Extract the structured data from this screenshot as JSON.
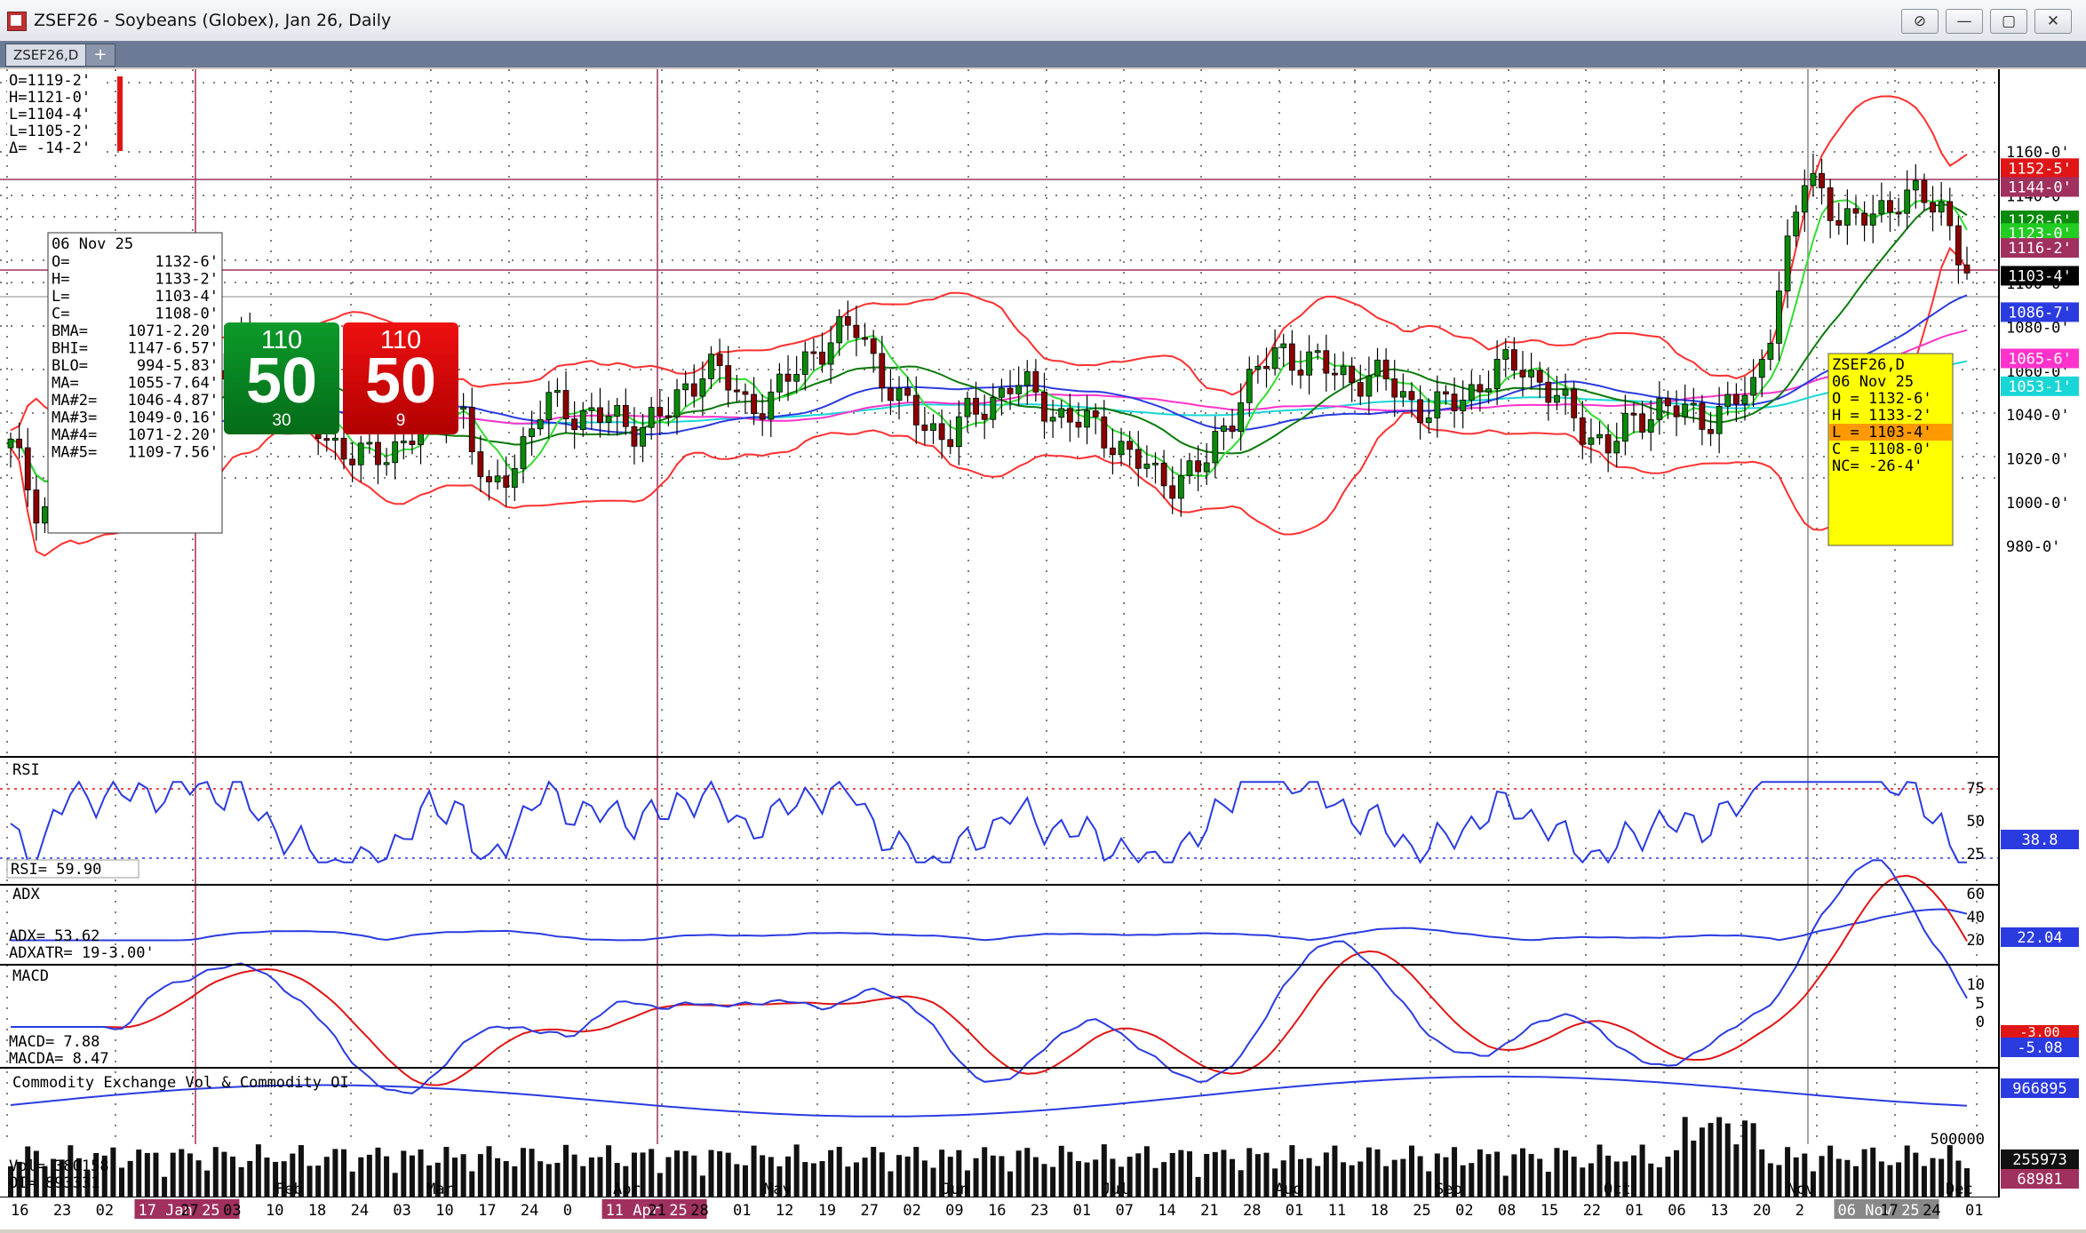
{
  "window": {
    "title": "ZSEF26 - Soybeans (Globex), Jan 26, Daily",
    "tab_label": "ZSEF26,D",
    "tab_add": "+",
    "buttons": [
      "⊘",
      "—",
      "▢",
      "✕"
    ]
  },
  "ohlc_box": [
    "O=1119-2'",
    "H=1121-0'",
    "L=1104-4'",
    "L=1105-2'",
    "Δ= -14-2'"
  ],
  "data_box": {
    "date": "06 Nov 25",
    "rows": [
      [
        "O=",
        "1132-6'"
      ],
      [
        "H=",
        "1133-2'"
      ],
      [
        "L=",
        "1103-4'"
      ],
      [
        "C=",
        "1108-0'"
      ],
      [
        "BMA=",
        "1071-2.20'"
      ],
      [
        "BHI=",
        "1147-6.57'"
      ],
      [
        "BLO=",
        "994-5.83'"
      ],
      [
        "MA=",
        "1055-7.64'"
      ],
      [
        "MA#2=",
        "1046-4.87'"
      ],
      [
        "MA#3=",
        "1049-0.16'"
      ],
      [
        "MA#4=",
        "1071-2.20'"
      ],
      [
        "MA#5=",
        "1109-7.56'"
      ]
    ]
  },
  "signals": {
    "green": {
      "top": "110",
      "big": "50",
      "bottom": "30"
    },
    "red": {
      "top": "110",
      "big": "50",
      "bottom": "9"
    }
  },
  "yellow_box": [
    "ZSEF26,D",
    "06 Nov 25",
    "O = 1132-6'",
    "H = 1133-2'",
    "L = 1103-4'",
    "C = 1108-0'",
    "NC= -26-4'"
  ],
  "price_axis": {
    "ticks": [
      "1160-0'",
      "1140-0'",
      "1100-0'",
      "1080-0'",
      "1060-0'",
      "1040-0'",
      "1020-0'",
      "1000-0'",
      "980-0'"
    ],
    "tick_values": [
      1160,
      1140,
      1100,
      1080,
      1060,
      1040,
      1020,
      1000,
      980
    ],
    "badges": [
      {
        "text": "1152-5'",
        "value": 1152.6,
        "color": "#e01515"
      },
      {
        "text": "1144-0'",
        "value": 1144,
        "color": "#a0305e"
      },
      {
        "text": "1128-6'",
        "value": 1128.8,
        "color": "#0a8a0a"
      },
      {
        "text": "1123-0'",
        "value": 1123,
        "color": "#22cc22"
      },
      {
        "text": "1116-2'",
        "value": 1116.2,
        "color": "#a0305e"
      },
      {
        "text": "1103-4'",
        "value": 1103.5,
        "color": "#000000"
      },
      {
        "text": "1086-7'",
        "value": 1086.9,
        "color": "#2a3be0"
      },
      {
        "text": "1065-6'",
        "value": 1065.8,
        "color": "#ff33cc"
      },
      {
        "text": "1053-1'",
        "value": 1053.1,
        "color": "#19d6d6"
      }
    ]
  },
  "rsi": {
    "label": "RSI",
    "readout": "RSI=   59.90",
    "ticks": [
      "75",
      "50",
      "25"
    ],
    "badge": "38.8"
  },
  "adx": {
    "label": "ADX",
    "readout1": "ADX=         53.62",
    "readout2": "ADXATR= 19-3.00'",
    "ticks": [
      "60",
      "40",
      "20"
    ],
    "badge": "22.04"
  },
  "macd": {
    "label": "MACD",
    "readout1": "MACD=    7.88",
    "readout2": "MACDA=   8.47",
    "ticks": [
      "10",
      "5",
      "0"
    ],
    "badge_red": "-3.00",
    "badge_blue": "-5.08"
  },
  "volume": {
    "label": "Commodity Exchange Vol & Commodity OI",
    "readout1": "Vol=   380158",
    "readout2": "OI=    893331",
    "tick": "500000",
    "badges": [
      "966895",
      "255973",
      "68981"
    ]
  },
  "date_axis": {
    "labels": [
      "16",
      "23",
      "02",
      "17 Jan 25",
      "27",
      "03",
      "10",
      "18",
      "24",
      "03",
      "10",
      "17",
      "24",
      "0",
      "11 Apr 25",
      "21",
      "28",
      "01",
      "12",
      "19",
      "27",
      "02",
      "09",
      "16",
      "23",
      "01",
      "07",
      "14",
      "21",
      "28",
      "01",
      "11",
      "18",
      "25",
      "02",
      "08",
      "15",
      "22",
      "01",
      "06",
      "13",
      "20",
      "2",
      "06 Nov 25",
      "17",
      "24",
      "01"
    ],
    "months": [
      "Feb",
      "Mar",
      "Apr",
      "May",
      "Jun",
      "Jul",
      "Aug",
      "Sep",
      "Oct",
      "Nov",
      "Dec"
    ]
  },
  "colors": {
    "candle_up": "#0a8a0a",
    "candle_down": "#8b0000",
    "bollinger": "#ff3030",
    "ma_fast": "#33dd33",
    "ma_slow": "#0b7a0b",
    "ma_blue": "#2a3be0",
    "ma_magenta": "#ff33cc",
    "ma_cyan": "#19d6d6"
  }
}
